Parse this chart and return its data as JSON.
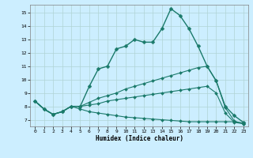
{
  "xlabel": "Humidex (Indice chaleur)",
  "background_color": "#cceeff",
  "grid_color": "#b0d4d4",
  "line_color": "#1a7a6a",
  "x": [
    0,
    1,
    2,
    3,
    4,
    5,
    6,
    7,
    8,
    9,
    10,
    11,
    12,
    13,
    14,
    15,
    16,
    17,
    18,
    19,
    20,
    21,
    22,
    23
  ],
  "series": [
    [
      8.4,
      7.8,
      7.4,
      7.6,
      8.0,
      8.0,
      9.5,
      10.8,
      11.0,
      12.3,
      12.5,
      13.0,
      12.8,
      12.8,
      13.8,
      15.3,
      14.8,
      13.8,
      12.5,
      11.0,
      9.9,
      8.0,
      7.3,
      6.8
    ],
    [
      8.4,
      7.8,
      7.4,
      7.6,
      8.0,
      8.0,
      8.3,
      8.6,
      8.8,
      9.0,
      9.3,
      9.5,
      9.7,
      9.9,
      10.1,
      10.3,
      10.5,
      10.7,
      10.9,
      11.0,
      9.9,
      7.9,
      6.9,
      6.7
    ],
    [
      8.4,
      7.8,
      7.4,
      7.6,
      8.0,
      8.0,
      8.1,
      8.2,
      8.4,
      8.5,
      8.6,
      8.7,
      8.8,
      8.9,
      9.0,
      9.1,
      9.2,
      9.3,
      9.4,
      9.5,
      9.0,
      7.5,
      6.8,
      6.7
    ],
    [
      8.4,
      7.8,
      7.4,
      7.6,
      8.0,
      7.8,
      7.6,
      7.5,
      7.4,
      7.3,
      7.2,
      7.15,
      7.1,
      7.05,
      7.0,
      6.95,
      6.9,
      6.85,
      6.85,
      6.85,
      6.85,
      6.85,
      6.85,
      6.75
    ]
  ],
  "ylim": [
    6.5,
    15.6
  ],
  "yticks": [
    7,
    8,
    9,
    10,
    11,
    12,
    13,
    14,
    15
  ],
  "xlim": [
    -0.5,
    23.5
  ],
  "xticks": [
    0,
    1,
    2,
    3,
    4,
    5,
    6,
    7,
    8,
    9,
    10,
    11,
    12,
    13,
    14,
    15,
    16,
    17,
    18,
    19,
    20,
    21,
    22,
    23
  ]
}
